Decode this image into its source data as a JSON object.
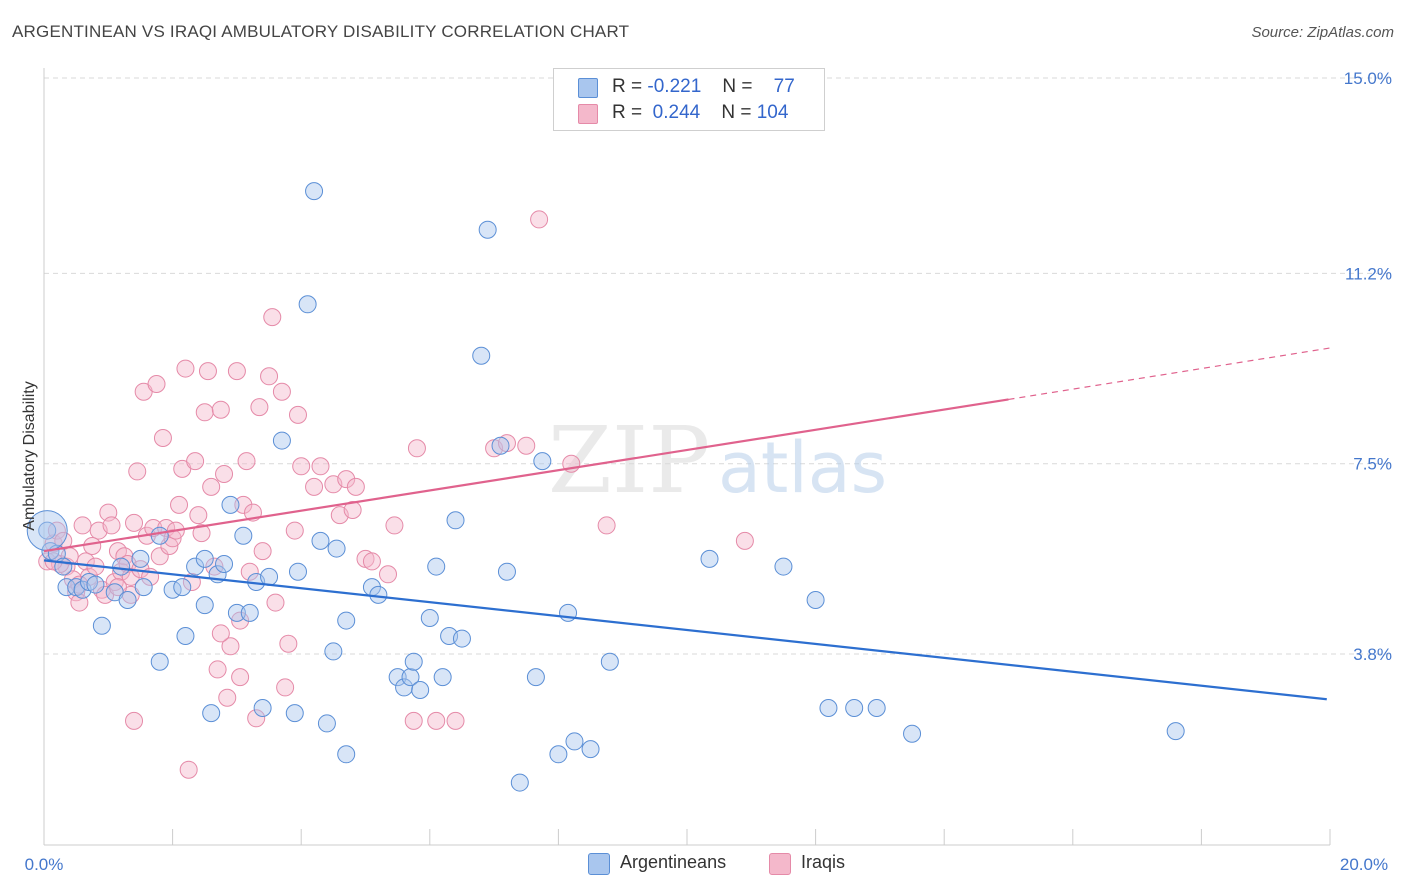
{
  "title": "ARGENTINEAN VS IRAQI AMBULATORY DISABILITY CORRELATION CHART",
  "source": "Source: ZipAtlas.com",
  "watermark": {
    "zip": "ZIP",
    "atlas": "atlas"
  },
  "colors": {
    "blue_fill": "#a9c6ee",
    "blue_stroke": "#5b8fd6",
    "blue_line": "#2d6fd0",
    "pink_fill": "#f4b8cb",
    "pink_stroke": "#e58aa8",
    "pink_line": "#e0628d",
    "grid": "#d9d9d9",
    "tick_label": "#4477cc"
  },
  "legend": {
    "rows": [
      {
        "r_label": "R =",
        "r_value": "-0.221",
        "n_label": "N =",
        "n_value": "77"
      },
      {
        "r_label": "R =",
        "r_value": "0.244",
        "n_label": "N =",
        "n_value": "104"
      }
    ]
  },
  "bottom_legend": {
    "series1": "Argentineans",
    "series2": "Iraqis"
  },
  "chart_data": {
    "type": "scatter",
    "title": "ARGENTINEAN VS IRAQI AMBULATORY DISABILITY CORRELATION CHART",
    "xlabel": "",
    "ylabel": "Ambulatory Disability",
    "xlim": [
      0,
      20
    ],
    "ylim": [
      0,
      15.4
    ],
    "x_tick_labels": [
      "0.0%",
      "20.0%"
    ],
    "y_ticks": [
      3.8,
      7.5,
      11.2,
      15.0
    ],
    "y_tick_labels": [
      "3.8%",
      "7.5%",
      "11.2%",
      "15.0%"
    ],
    "grid": "horizontal dashed",
    "legend_position": "top-center",
    "series": [
      {
        "name": "Argentineans",
        "r": -0.221,
        "n": 77,
        "trend": {
          "x": [
            0.0,
            19.95
          ],
          "y": [
            5.62,
            2.92
          ]
        },
        "points": [
          [
            0.05,
            6.2
          ],
          [
            0.1,
            5.8
          ],
          [
            0.2,
            5.75
          ],
          [
            0.3,
            5.5
          ],
          [
            0.35,
            5.1
          ],
          [
            0.5,
            5.1
          ],
          [
            0.6,
            5.05
          ],
          [
            0.7,
            5.2
          ],
          [
            0.8,
            5.15
          ],
          [
            0.9,
            4.35
          ],
          [
            1.1,
            5.0
          ],
          [
            1.2,
            5.5
          ],
          [
            1.5,
            5.65
          ],
          [
            1.55,
            5.1
          ],
          [
            1.8,
            6.1
          ],
          [
            1.8,
            3.65
          ],
          [
            2.0,
            5.05
          ],
          [
            2.15,
            5.1
          ],
          [
            2.2,
            4.15
          ],
          [
            2.35,
            5.5
          ],
          [
            2.5,
            4.75
          ],
          [
            2.5,
            5.65
          ],
          [
            2.6,
            2.65
          ],
          [
            2.7,
            5.35
          ],
          [
            2.8,
            5.55
          ],
          [
            2.9,
            6.7
          ],
          [
            3.0,
            4.6
          ],
          [
            3.1,
            6.1
          ],
          [
            3.2,
            4.6
          ],
          [
            3.3,
            5.2
          ],
          [
            3.4,
            2.75
          ],
          [
            3.5,
            5.3
          ],
          [
            3.7,
            7.95
          ],
          [
            3.9,
            2.65
          ],
          [
            3.95,
            5.4
          ],
          [
            4.1,
            10.6
          ],
          [
            4.2,
            12.8
          ],
          [
            4.3,
            6.0
          ],
          [
            4.4,
            2.45
          ],
          [
            4.5,
            3.85
          ],
          [
            4.55,
            5.85
          ],
          [
            4.7,
            1.85
          ],
          [
            4.7,
            4.45
          ],
          [
            5.1,
            5.1
          ],
          [
            5.2,
            4.95
          ],
          [
            5.5,
            3.35
          ],
          [
            5.6,
            3.15
          ],
          [
            5.7,
            3.35
          ],
          [
            5.75,
            3.65
          ],
          [
            5.85,
            3.1
          ],
          [
            6.0,
            4.5
          ],
          [
            6.1,
            5.5
          ],
          [
            6.2,
            3.35
          ],
          [
            6.3,
            4.15
          ],
          [
            6.4,
            6.4
          ],
          [
            6.5,
            4.1
          ],
          [
            6.8,
            9.6
          ],
          [
            6.9,
            12.05
          ],
          [
            7.1,
            7.85
          ],
          [
            7.2,
            5.4
          ],
          [
            7.4,
            1.3
          ],
          [
            7.65,
            3.35
          ],
          [
            7.75,
            7.55
          ],
          [
            8.0,
            1.85
          ],
          [
            8.15,
            4.6
          ],
          [
            8.25,
            2.1
          ],
          [
            8.5,
            1.95
          ],
          [
            8.8,
            3.65
          ],
          [
            10.35,
            5.65
          ],
          [
            11.5,
            5.5
          ],
          [
            12.0,
            4.85
          ],
          [
            12.2,
            2.75
          ],
          [
            12.6,
            2.75
          ],
          [
            12.95,
            2.75
          ],
          [
            13.5,
            2.25
          ],
          [
            17.6,
            2.3
          ],
          [
            1.3,
            4.85
          ]
        ]
      },
      {
        "name": "Iraqis",
        "r": 0.244,
        "n": 104,
        "trend": {
          "x": [
            0.0,
            15.0
          ],
          "y": [
            5.8,
            8.75
          ]
        },
        "trend_dashed": {
          "x": [
            15.0,
            20.0
          ],
          "y": [
            8.75,
            9.75
          ]
        },
        "points": [
          [
            0.05,
            5.6
          ],
          [
            0.15,
            5.95
          ],
          [
            0.2,
            6.2
          ],
          [
            0.3,
            6.0
          ],
          [
            0.35,
            5.5
          ],
          [
            0.45,
            5.25
          ],
          [
            0.5,
            5.0
          ],
          [
            0.55,
            4.8
          ],
          [
            0.6,
            6.3
          ],
          [
            0.65,
            5.6
          ],
          [
            0.7,
            5.3
          ],
          [
            0.8,
            5.5
          ],
          [
            0.85,
            6.2
          ],
          [
            0.9,
            5.05
          ],
          [
            1.0,
            6.55
          ],
          [
            1.05,
            6.3
          ],
          [
            1.1,
            5.2
          ],
          [
            1.15,
            5.8
          ],
          [
            1.2,
            5.4
          ],
          [
            1.25,
            5.7
          ],
          [
            1.3,
            5.55
          ],
          [
            1.35,
            5.3
          ],
          [
            1.4,
            6.35
          ],
          [
            1.45,
            7.35
          ],
          [
            1.5,
            5.45
          ],
          [
            1.55,
            8.9
          ],
          [
            1.6,
            6.1
          ],
          [
            1.7,
            6.25
          ],
          [
            1.75,
            9.05
          ],
          [
            1.8,
            5.7
          ],
          [
            1.85,
            8.0
          ],
          [
            1.9,
            6.25
          ],
          [
            1.95,
            5.9
          ],
          [
            2.0,
            6.05
          ],
          [
            2.05,
            6.2
          ],
          [
            2.1,
            6.7
          ],
          [
            2.15,
            7.4
          ],
          [
            2.2,
            9.35
          ],
          [
            2.3,
            5.2
          ],
          [
            2.35,
            7.55
          ],
          [
            2.4,
            6.5
          ],
          [
            2.5,
            8.5
          ],
          [
            2.55,
            9.3
          ],
          [
            2.6,
            7.05
          ],
          [
            2.65,
            5.5
          ],
          [
            2.7,
            3.5
          ],
          [
            2.75,
            8.55
          ],
          [
            2.8,
            7.3
          ],
          [
            2.85,
            2.95
          ],
          [
            2.9,
            3.95
          ],
          [
            3.0,
            9.3
          ],
          [
            3.05,
            3.35
          ],
          [
            3.1,
            6.7
          ],
          [
            3.15,
            7.55
          ],
          [
            3.2,
            5.4
          ],
          [
            3.25,
            6.55
          ],
          [
            3.3,
            2.55
          ],
          [
            3.35,
            8.6
          ],
          [
            3.4,
            5.8
          ],
          [
            3.5,
            9.2
          ],
          [
            3.55,
            10.35
          ],
          [
            3.6,
            4.8
          ],
          [
            3.7,
            8.9
          ],
          [
            3.75,
            3.15
          ],
          [
            3.8,
            4.0
          ],
          [
            3.9,
            6.2
          ],
          [
            3.95,
            8.45
          ],
          [
            4.0,
            7.45
          ],
          [
            4.2,
            7.05
          ],
          [
            4.3,
            7.45
          ],
          [
            4.5,
            7.1
          ],
          [
            4.6,
            6.5
          ],
          [
            4.7,
            7.2
          ],
          [
            4.8,
            6.6
          ],
          [
            4.85,
            7.05
          ],
          [
            5.0,
            5.65
          ],
          [
            5.1,
            5.6
          ],
          [
            5.35,
            5.35
          ],
          [
            5.45,
            6.3
          ],
          [
            5.75,
            2.5
          ],
          [
            5.8,
            7.8
          ],
          [
            6.1,
            2.5
          ],
          [
            6.4,
            2.5
          ],
          [
            7.0,
            7.8
          ],
          [
            7.2,
            7.9
          ],
          [
            7.5,
            7.85
          ],
          [
            7.7,
            12.25
          ],
          [
            8.2,
            7.5
          ],
          [
            8.75,
            6.3
          ],
          [
            10.9,
            6.0
          ],
          [
            0.25,
            5.55
          ],
          [
            0.4,
            5.7
          ],
          [
            0.75,
            5.9
          ],
          [
            0.95,
            4.95
          ],
          [
            1.65,
            5.3
          ],
          [
            2.45,
            6.15
          ],
          [
            1.35,
            4.95
          ],
          [
            0.55,
            5.15
          ],
          [
            0.15,
            5.6
          ],
          [
            2.25,
            1.55
          ],
          [
            1.4,
            2.5
          ],
          [
            2.75,
            4.2
          ],
          [
            3.05,
            4.45
          ],
          [
            1.15,
            5.1
          ]
        ]
      }
    ]
  }
}
